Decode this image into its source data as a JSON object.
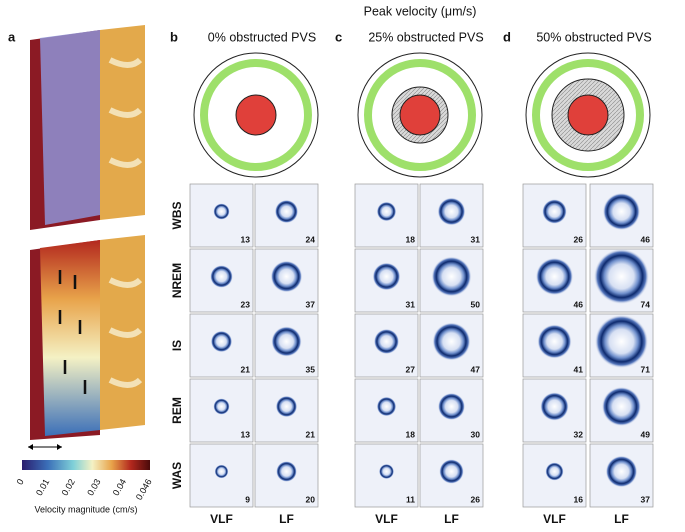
{
  "header": {
    "title": "Peak velocity (μm/s)"
  },
  "panel_a": {
    "label": "a",
    "colorbar": {
      "ticks": [
        "0",
        "0.01",
        "0.02",
        "0.03",
        "0.04",
        "0.046"
      ],
      "label": "Velocity magnitude (cm/s)"
    }
  },
  "rows": [
    "WBS",
    "NREM",
    "IS",
    "REM",
    "WAS"
  ],
  "columns": [
    "VLF",
    "LF"
  ],
  "panels": [
    {
      "label": "b",
      "title": "0% obstructed PVS",
      "values": [
        [
          13,
          24
        ],
        [
          23,
          37
        ],
        [
          21,
          35
        ],
        [
          13,
          21
        ],
        [
          9,
          20
        ]
      ]
    },
    {
      "label": "c",
      "title": "25% obstructed PVS",
      "values": [
        [
          18,
          31
        ],
        [
          31,
          50
        ],
        [
          27,
          47
        ],
        [
          18,
          30
        ],
        [
          11,
          26
        ]
      ]
    },
    {
      "label": "d",
      "title": "50% obstructed PVS",
      "values": [
        [
          26,
          46
        ],
        [
          46,
          74
        ],
        [
          41,
          71
        ],
        [
          32,
          49
        ],
        [
          16,
          37
        ]
      ]
    }
  ]
}
